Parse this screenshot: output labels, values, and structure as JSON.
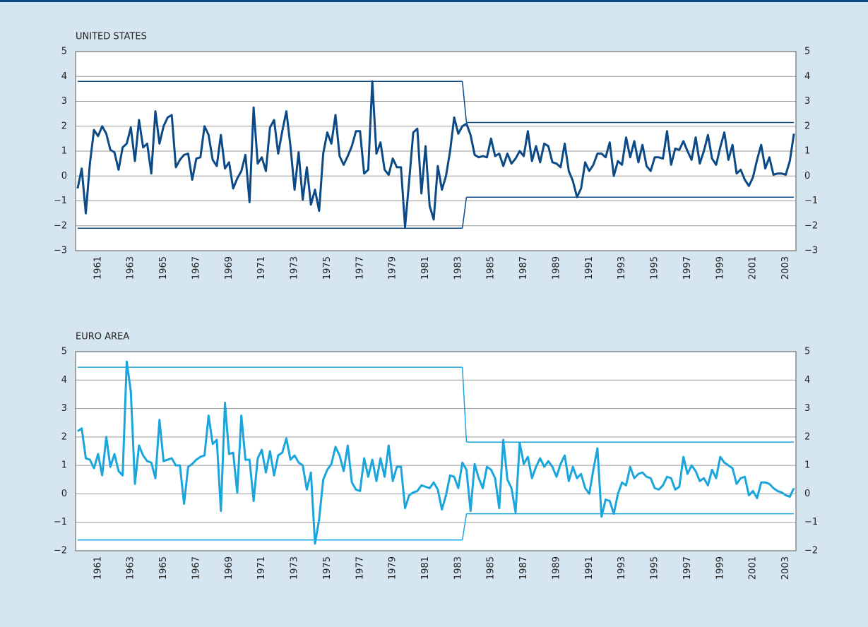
{
  "chart_data": [
    {
      "type": "line",
      "title": "UNITED STATES",
      "categories": [
        null,
        null,
        null,
        null,
        null,
        "1961",
        null,
        null,
        null,
        null,
        null,
        null,
        null,
        "1963",
        null,
        null,
        null,
        null,
        null,
        null,
        null,
        "1965",
        null,
        null,
        null,
        null,
        null,
        null,
        null,
        "1967",
        null,
        null,
        null,
        null,
        null,
        null,
        null,
        "1969",
        null,
        null,
        null,
        null,
        null,
        null,
        null,
        "1971",
        null,
        null,
        null,
        null,
        null,
        null,
        null,
        "1973",
        null,
        null,
        null,
        null,
        null,
        null,
        null,
        "1975",
        null,
        null,
        null,
        null,
        null,
        null,
        null,
        "1977",
        null,
        null,
        null,
        null,
        null,
        null,
        null,
        "1979",
        null,
        null,
        null,
        null,
        null,
        null,
        null,
        "1981",
        null,
        null,
        null,
        null,
        null,
        null,
        null,
        "1983",
        null,
        null,
        null,
        null,
        null,
        null,
        null,
        "1985",
        null,
        null,
        null,
        null,
        null,
        null,
        null,
        "1987",
        null,
        null,
        null,
        null,
        null,
        null,
        null,
        "1989",
        null,
        null,
        null,
        null,
        null,
        null,
        null,
        "1991",
        null,
        null,
        null,
        null,
        null,
        null,
        null,
        "1993",
        null,
        null,
        null,
        null,
        null,
        null,
        null,
        "1995",
        null,
        null,
        null,
        null,
        null,
        null,
        null,
        "1997",
        null,
        null,
        null,
        null,
        null,
        null,
        null,
        "1999",
        null,
        null,
        null,
        null,
        null,
        null,
        null,
        "2001",
        null,
        null,
        null,
        null,
        null,
        null,
        null,
        "2003",
        null,
        null
      ],
      "values": [
        -0.5,
        0.3,
        -1.5,
        0.5,
        1.85,
        1.6,
        2.0,
        1.7,
        1.05,
        0.95,
        0.25,
        1.15,
        1.3,
        1.95,
        0.6,
        2.25,
        1.15,
        1.3,
        0.1,
        2.6,
        1.3,
        2.0,
        2.35,
        2.45,
        0.35,
        0.65,
        0.85,
        0.9,
        -0.15,
        0.7,
        0.75,
        2.0,
        1.65,
        0.65,
        0.4,
        1.65,
        0.3,
        0.55,
        -0.5,
        -0.1,
        0.2,
        0.85,
        -1.05,
        2.75,
        0.5,
        0.75,
        0.2,
        1.95,
        2.25,
        0.9,
        1.8,
        2.6,
        1.2,
        -0.55,
        0.95,
        -0.95,
        0.35,
        -1.15,
        -0.55,
        -1.4,
        0.9,
        1.75,
        1.3,
        2.45,
        0.8,
        0.45,
        0.8,
        1.2,
        1.8,
        1.8,
        0.1,
        0.25,
        3.8,
        0.9,
        1.35,
        0.25,
        0.05,
        0.7,
        0.35,
        0.35,
        -2.05,
        -0.2,
        1.75,
        1.9,
        -0.7,
        1.2,
        -1.2,
        -1.75,
        0.4,
        -0.55,
        0.0,
        1.0,
        2.35,
        1.7,
        2.0,
        2.1,
        1.65,
        0.85,
        0.75,
        0.8,
        0.75,
        1.5,
        0.8,
        0.9,
        0.4,
        0.9,
        0.5,
        0.7,
        1.0,
        0.8,
        1.8,
        0.6,
        1.2,
        0.55,
        1.3,
        1.2,
        0.55,
        0.5,
        0.35,
        1.3,
        0.2,
        -0.2,
        -0.85,
        -0.5,
        0.55,
        0.2,
        0.45,
        0.9,
        0.9,
        0.75,
        1.35,
        0.0,
        0.6,
        0.45,
        1.55,
        0.75,
        1.4,
        0.55,
        1.25,
        0.4,
        0.2,
        0.75,
        0.75,
        0.7,
        1.8,
        0.45,
        1.1,
        1.05,
        1.4,
        1.0,
        0.65,
        1.55,
        0.5,
        1.0,
        1.65,
        0.7,
        0.45,
        1.15,
        1.75,
        0.65,
        1.25,
        0.1,
        0.25,
        -0.15,
        -0.4,
        -0.05,
        0.65,
        1.25,
        0.3,
        0.75,
        0.05,
        0.1,
        0.1,
        0.05,
        0.6,
        1.7
      ],
      "color": "#0b4a86",
      "bands": [
        {
          "from": 0,
          "to": 94,
          "upper": 3.8,
          "lower": -2.1
        },
        {
          "from": 95,
          "to": 175,
          "upper": 2.15,
          "lower": -0.85
        }
      ],
      "ylim": [
        -3,
        5
      ],
      "yticks": [
        {
          "value": -3,
          "label": "−3"
        },
        {
          "value": -2,
          "label": "−2"
        },
        {
          "value": -1,
          "label": "−1"
        },
        0,
        1,
        2,
        3,
        4,
        5
      ],
      "grid": true
    },
    {
      "type": "line",
      "title": "EURO AREA",
      "categories": [
        null,
        null,
        null,
        null,
        null,
        "1961",
        null,
        null,
        null,
        null,
        null,
        null,
        null,
        "1963",
        null,
        null,
        null,
        null,
        null,
        null,
        null,
        "1965",
        null,
        null,
        null,
        null,
        null,
        null,
        null,
        "1967",
        null,
        null,
        null,
        null,
        null,
        null,
        null,
        "1969",
        null,
        null,
        null,
        null,
        null,
        null,
        null,
        "1971",
        null,
        null,
        null,
        null,
        null,
        null,
        null,
        "1973",
        null,
        null,
        null,
        null,
        null,
        null,
        null,
        "1975",
        null,
        null,
        null,
        null,
        null,
        null,
        null,
        "1977",
        null,
        null,
        null,
        null,
        null,
        null,
        null,
        "1979",
        null,
        null,
        null,
        null,
        null,
        null,
        null,
        "1981",
        null,
        null,
        null,
        null,
        null,
        null,
        null,
        "1983",
        null,
        null,
        null,
        null,
        null,
        null,
        null,
        "1985",
        null,
        null,
        null,
        null,
        null,
        null,
        null,
        "1987",
        null,
        null,
        null,
        null,
        null,
        null,
        null,
        "1989",
        null,
        null,
        null,
        null,
        null,
        null,
        null,
        "1991",
        null,
        null,
        null,
        null,
        null,
        null,
        null,
        "1993",
        null,
        null,
        null,
        null,
        null,
        null,
        null,
        "1995",
        null,
        null,
        null,
        null,
        null,
        null,
        null,
        "1997",
        null,
        null,
        null,
        null,
        null,
        null,
        null,
        "1999",
        null,
        null,
        null,
        null,
        null,
        null,
        null,
        "2001",
        null,
        null,
        null,
        null,
        null,
        null,
        null,
        "2003",
        null,
        null
      ],
      "values": [
        2.2,
        2.3,
        1.25,
        1.2,
        0.9,
        1.4,
        0.65,
        2.0,
        0.95,
        1.4,
        0.8,
        0.65,
        4.65,
        3.6,
        0.35,
        1.7,
        1.35,
        1.15,
        1.1,
        0.55,
        2.6,
        1.15,
        1.2,
        1.25,
        1.0,
        1.0,
        -0.35,
        0.95,
        1.05,
        1.2,
        1.3,
        1.35,
        2.75,
        1.75,
        1.9,
        -0.6,
        3.2,
        1.4,
        1.45,
        0.05,
        2.75,
        1.2,
        1.2,
        -0.25,
        1.25,
        1.55,
        0.75,
        1.5,
        0.65,
        1.35,
        1.45,
        1.95,
        1.2,
        1.35,
        1.1,
        1.0,
        0.15,
        0.75,
        -1.75,
        -0.9,
        0.5,
        0.85,
        1.05,
        1.65,
        1.35,
        0.8,
        1.7,
        0.4,
        0.15,
        0.1,
        1.25,
        0.6,
        1.2,
        0.45,
        1.25,
        0.6,
        1.7,
        0.45,
        0.95,
        0.95,
        -0.5,
        -0.05,
        0.05,
        0.1,
        0.3,
        0.25,
        0.2,
        0.4,
        0.15,
        -0.55,
        -0.05,
        0.65,
        0.6,
        0.2,
        1.1,
        0.85,
        -0.6,
        1.05,
        0.55,
        0.2,
        0.95,
        0.85,
        0.55,
        -0.5,
        1.9,
        0.5,
        0.2,
        -0.65,
        1.8,
        1.05,
        1.3,
        0.55,
        0.95,
        1.25,
        0.95,
        1.15,
        0.95,
        0.6,
        1.05,
        1.35,
        0.45,
        0.95,
        0.55,
        0.7,
        0.2,
        0.0,
        0.85,
        1.6,
        -0.8,
        -0.2,
        -0.25,
        -0.7,
        0.0,
        0.4,
        0.3,
        0.95,
        0.55,
        0.7,
        0.75,
        0.6,
        0.55,
        0.2,
        0.15,
        0.3,
        0.6,
        0.55,
        0.15,
        0.25,
        1.3,
        0.7,
        1.0,
        0.8,
        0.45,
        0.55,
        0.3,
        0.85,
        0.55,
        1.3,
        1.1,
        1.0,
        0.9,
        0.35,
        0.55,
        0.6,
        -0.05,
        0.1,
        -0.15,
        0.4,
        0.4,
        0.35,
        0.2,
        0.1,
        0.05,
        -0.05,
        -0.1,
        0.2
      ],
      "color": "#1aa6dc",
      "bands": [
        {
          "from": 0,
          "to": 94,
          "upper": 4.45,
          "lower": -1.62
        },
        {
          "from": 95,
          "to": 175,
          "upper": 1.82,
          "lower": -0.7
        }
      ],
      "ylim": [
        -2,
        5
      ],
      "yticks": [
        {
          "value": -2,
          "label": "−2"
        },
        {
          "value": -1,
          "label": "−1"
        },
        0,
        1,
        2,
        3,
        4,
        5
      ],
      "grid": true
    }
  ]
}
